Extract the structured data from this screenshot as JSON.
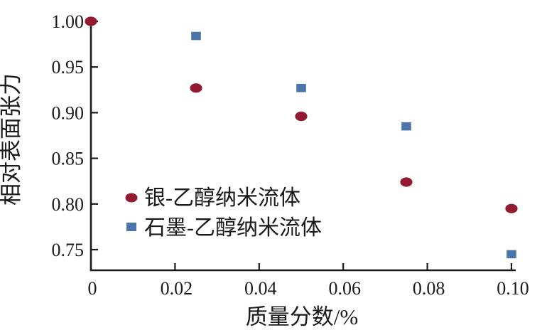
{
  "chart_data": {
    "type": "scatter",
    "title": "",
    "xlabel": "质量分数/%",
    "ylabel": "相对表面张力",
    "xlim": [
      0,
      0.1
    ],
    "ylim": [
      0.727,
      1.005
    ],
    "grid": false,
    "legend_position": "inside-lower-left",
    "xticks": {
      "values": [
        0,
        0.02,
        0.04,
        0.06,
        0.08,
        0.1
      ],
      "labels": [
        "0",
        "0.02",
        "0.04",
        "0.06",
        "0.08",
        "0.10"
      ]
    },
    "yticks": {
      "values": [
        1.0,
        0.95,
        0.9,
        0.85,
        0.8,
        0.75
      ],
      "labels": [
        "1.00",
        "0.95",
        "0.90",
        "0.85",
        "0.80",
        "0.75"
      ]
    },
    "series": [
      {
        "name": "银-乙醇纳米流体",
        "marker": "circle",
        "color": "#921b32",
        "x": [
          0,
          0.025,
          0.05,
          0.075,
          0.1
        ],
        "y": [
          1.0,
          0.927,
          0.896,
          0.824,
          0.795
        ]
      },
      {
        "name": "石墨-乙醇纳米流体",
        "marker": "square",
        "color": "#4a76ac",
        "x": [
          0.025,
          0.05,
          0.075,
          0.1
        ],
        "y": [
          0.984,
          0.927,
          0.885,
          0.745
        ]
      }
    ],
    "colors": {
      "axis": "#1a1a1a",
      "text": "#1a1a1a",
      "background": "#ffffff"
    }
  }
}
